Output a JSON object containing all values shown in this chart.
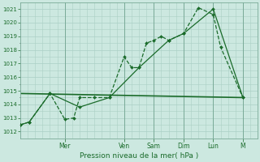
{
  "xlabel": "Pression niveau de la mer( hPa )",
  "bg_color": "#cce8e0",
  "grid_color": "#aacfc5",
  "line_color": "#1a6b2a",
  "dark_line_color": "#1a5520",
  "ylim": [
    1011.5,
    1021.5
  ],
  "xlim": [
    0,
    8.0
  ],
  "day_labels": [
    "Mer",
    "Ven",
    "Sam",
    "Dim",
    "Lun",
    "M"
  ],
  "day_positions": [
    1.5,
    3.5,
    4.5,
    5.5,
    6.5,
    7.5
  ],
  "series1_x": [
    0.0,
    0.3,
    1.0,
    1.5,
    1.8,
    2.0,
    2.5,
    3.0,
    3.5,
    3.75,
    4.0,
    4.25,
    4.5,
    4.75,
    5.0,
    5.5,
    6.0,
    6.5,
    6.75,
    7.5
  ],
  "series1_y": [
    1012.5,
    1012.7,
    1014.8,
    1012.9,
    1013.0,
    1014.5,
    1014.5,
    1014.5,
    1017.5,
    1016.7,
    1016.7,
    1018.5,
    1018.7,
    1019.0,
    1018.7,
    1019.2,
    1021.1,
    1020.6,
    1018.2,
    1014.5
  ],
  "series2_x": [
    0.0,
    0.3,
    1.0,
    2.0,
    3.0,
    4.0,
    5.0,
    5.5,
    6.5,
    7.5
  ],
  "series2_y": [
    1012.5,
    1012.7,
    1014.8,
    1013.8,
    1014.5,
    1016.7,
    1018.7,
    1019.2,
    1021.0,
    1014.5
  ],
  "series3_x": [
    0.0,
    7.5
  ],
  "series3_y": [
    1014.8,
    1014.5
  ],
  "yticks": [
    1012,
    1013,
    1014,
    1015,
    1016,
    1017,
    1018,
    1019,
    1020,
    1021
  ],
  "minor_yticks": [
    1012.5,
    1013.5,
    1014.5,
    1015.5,
    1016.5,
    1017.5,
    1018.5,
    1019.5,
    1020.5
  ],
  "vline_positions": [
    1.5,
    3.5,
    4.5,
    5.5,
    6.5,
    7.5
  ]
}
